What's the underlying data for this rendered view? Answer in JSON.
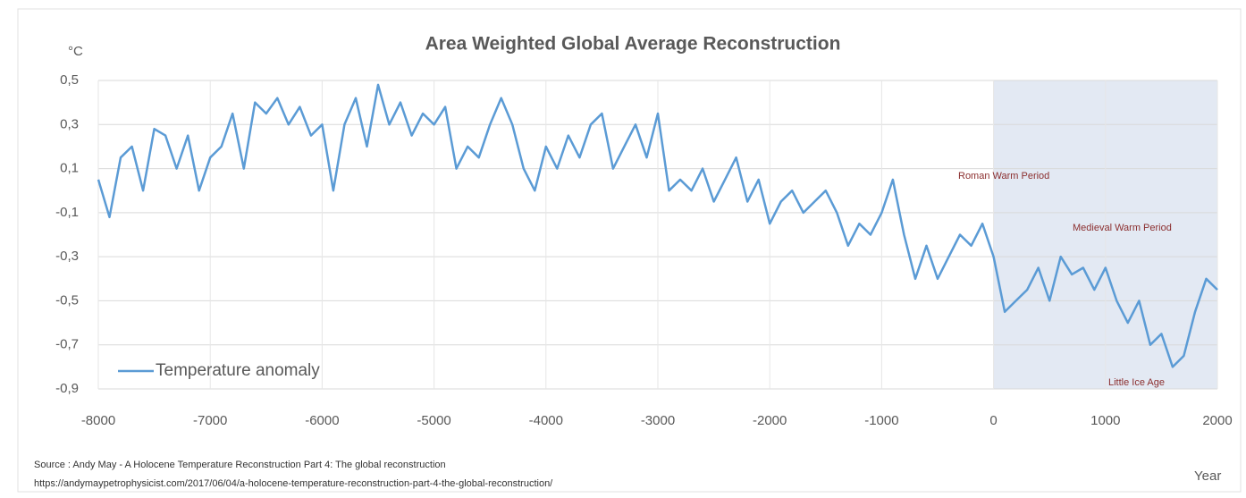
{
  "chart_data": {
    "type": "line",
    "title": "Area Weighted Global Average Reconstruction",
    "y_label": "°C",
    "x_label": "Year",
    "xlim": [
      -8000,
      2000
    ],
    "xticks": [
      -8000,
      -7000,
      -6000,
      -5000,
      -4000,
      -3000,
      -2000,
      -1000,
      0,
      1000,
      2000
    ],
    "ylim": [
      -0.9,
      0.5
    ],
    "yticks": [
      {
        "value": 0.5,
        "label": "0,5"
      },
      {
        "value": 0.3,
        "label": "0,3"
      },
      {
        "value": 0.1,
        "label": "0,1"
      },
      {
        "value": -0.1,
        "label": "-0,1"
      },
      {
        "value": -0.3,
        "label": "-0,3"
      },
      {
        "value": -0.5,
        "label": "-0,5"
      },
      {
        "value": -0.7,
        "label": "-0,7"
      },
      {
        "value": -0.9,
        "label": "-0,9"
      }
    ],
    "grid": true,
    "legend": "lower left",
    "highlight_xrange": [
      0,
      2000
    ],
    "highlight_color": "#e3e9f3",
    "x": [
      -8000,
      -7900,
      -7800,
      -7700,
      -7600,
      -7500,
      -7400,
      -7300,
      -7200,
      -7100,
      -7000,
      -6900,
      -6800,
      -6700,
      -6600,
      -6500,
      -6400,
      -6300,
      -6200,
      -6100,
      -6000,
      -5900,
      -5800,
      -5700,
      -5600,
      -5500,
      -5400,
      -5300,
      -5200,
      -5100,
      -5000,
      -4900,
      -4800,
      -4700,
      -4600,
      -4500,
      -4400,
      -4300,
      -4200,
      -4100,
      -4000,
      -3900,
      -3800,
      -3700,
      -3600,
      -3500,
      -3400,
      -3300,
      -3200,
      -3100,
      -3000,
      -2900,
      -2800,
      -2700,
      -2600,
      -2500,
      -2400,
      -2300,
      -2200,
      -2100,
      -2000,
      -1900,
      -1800,
      -1700,
      -1600,
      -1500,
      -1400,
      -1300,
      -1200,
      -1100,
      -1000,
      -900,
      -800,
      -700,
      -600,
      -500,
      -400,
      -300,
      -200,
      -100,
      0,
      100,
      200,
      300,
      400,
      500,
      600,
      700,
      800,
      900,
      1000,
      1100,
      1200,
      1300,
      1400,
      1500,
      1600,
      1700,
      1800,
      1900,
      2000
    ],
    "series": [
      {
        "name": "Temperature anomaly",
        "color": "#5b9bd5",
        "values": [
          0.05,
          -0.12,
          0.15,
          0.2,
          0.0,
          0.28,
          0.25,
          0.1,
          0.25,
          0.0,
          0.15,
          0.2,
          0.35,
          0.1,
          0.4,
          0.35,
          0.42,
          0.3,
          0.38,
          0.25,
          0.3,
          0.0,
          0.3,
          0.42,
          0.2,
          0.48,
          0.3,
          0.4,
          0.25,
          0.35,
          0.3,
          0.38,
          0.1,
          0.2,
          0.15,
          0.3,
          0.42,
          0.3,
          0.1,
          0.0,
          0.2,
          0.1,
          0.25,
          0.15,
          0.3,
          0.35,
          0.1,
          0.2,
          0.3,
          0.15,
          0.35,
          0.0,
          0.05,
          0.0,
          0.1,
          -0.05,
          0.05,
          0.15,
          -0.05,
          0.05,
          -0.15,
          -0.05,
          0.0,
          -0.1,
          -0.05,
          0.0,
          -0.1,
          -0.25,
          -0.15,
          -0.2,
          -0.1,
          0.05,
          -0.2,
          -0.4,
          -0.25,
          -0.4,
          -0.3,
          -0.2,
          -0.25,
          -0.15,
          -0.3,
          -0.55,
          -0.5,
          -0.45,
          -0.35,
          -0.5,
          -0.3,
          -0.38,
          -0.35,
          -0.45,
          -0.35,
          -0.5,
          -0.6,
          -0.5,
          -0.7,
          -0.65,
          -0.8,
          -0.75,
          -0.55,
          -0.4,
          -0.45
        ]
      }
    ],
    "annotations": [
      "Roman Warm Period",
      "Medieval Warm Period",
      "Little Ice Age"
    ],
    "source": [
      "Source : Andy May - A Holocene Temperature Reconstruction Part 4: The global reconstruction",
      "https://andymaypetrophysicist.com/2017/06/04/a-holocene-temperature-reconstruction-part-4-the-global-reconstruction/"
    ]
  }
}
